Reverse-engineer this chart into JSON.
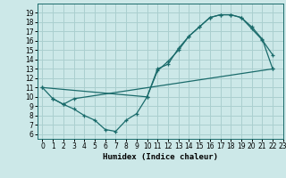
{
  "bg_color": "#cce8e8",
  "line_color": "#1a6b6b",
  "grid_color": "#aacfcf",
  "xlabel": "Humidex (Indice chaleur)",
  "xlim": [
    -0.5,
    23
  ],
  "ylim": [
    5.5,
    20
  ],
  "xticks": [
    0,
    1,
    2,
    3,
    4,
    5,
    6,
    7,
    8,
    9,
    10,
    11,
    12,
    13,
    14,
    15,
    16,
    17,
    18,
    19,
    20,
    21,
    22,
    23
  ],
  "yticks": [
    6,
    7,
    8,
    9,
    10,
    11,
    12,
    13,
    14,
    15,
    16,
    17,
    18,
    19
  ],
  "curve1_x": [
    0,
    1,
    2,
    3,
    4,
    5,
    6,
    7,
    8,
    9,
    10,
    11,
    12,
    13,
    14,
    15,
    16,
    17,
    18,
    19,
    20,
    21,
    22
  ],
  "curve1_y": [
    11.0,
    9.8,
    9.2,
    8.7,
    8.0,
    7.5,
    6.5,
    6.3,
    7.5,
    8.2,
    10.0,
    13.0,
    13.5,
    15.2,
    16.5,
    17.5,
    18.5,
    18.8,
    18.8,
    18.5,
    17.3,
    16.1,
    14.5
  ],
  "curve2_x": [
    0,
    10,
    11,
    12,
    13,
    14,
    15,
    16,
    17,
    18,
    19,
    20,
    21,
    22
  ],
  "curve2_y": [
    11.0,
    10.0,
    12.8,
    13.8,
    15.0,
    16.5,
    17.5,
    18.5,
    18.8,
    18.8,
    18.5,
    17.5,
    16.2,
    13.0
  ],
  "curve3_x": [
    1,
    2,
    3,
    22
  ],
  "curve3_y": [
    9.8,
    9.2,
    9.8,
    13.0
  ]
}
